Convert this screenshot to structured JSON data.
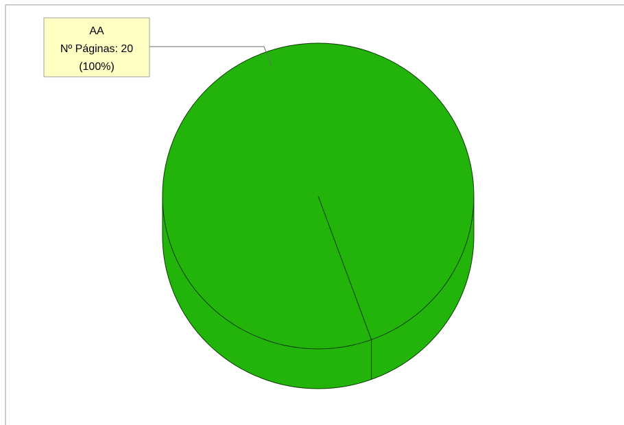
{
  "chart_data": {
    "type": "pie",
    "title": "",
    "categories": [
      "AA"
    ],
    "values": [
      20
    ],
    "percentages": [
      100
    ],
    "value_label": "Nº Páginas",
    "slice_labels": [
      {
        "category": "AA",
        "value_text": "Nº Páginas: 20",
        "percent_text": "(100%)"
      }
    ],
    "colors": {
      "slice": "#22b40a",
      "slice_stroke": "#0a3a02",
      "callout_fill": "#ffffc4",
      "callout_stroke": "#a0a0a0"
    },
    "style": "3d",
    "legend": "none"
  }
}
